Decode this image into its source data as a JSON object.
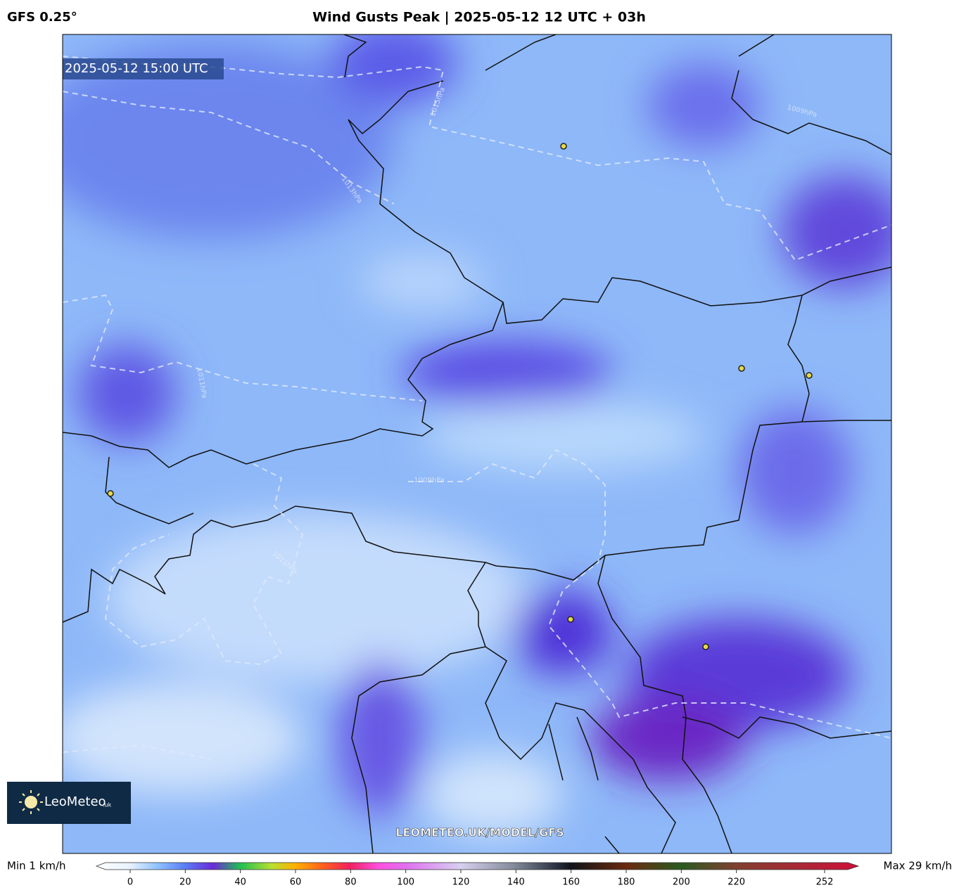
{
  "header": {
    "model": "GFS 0.25°",
    "title": "Wind Gusts Peak | 2025-05-12 12 UTC + 03h"
  },
  "map": {
    "valid_time": "2025-05-12 15:00 UTC",
    "isobar_labels": [
      "1015hPa",
      "1013hPa",
      "1011hPa",
      "1009hPa",
      "1009hPa",
      "1011hPa"
    ],
    "watermark": "LEOMETEO.UK/MODEL/GFS",
    "logo": {
      "name": "LeoMeteo",
      "suffix": ".uk"
    }
  },
  "colorbar": {
    "min_label": "Min 1 km/h",
    "max_label": "Max 29 km/h",
    "ticks": [
      0,
      20,
      40,
      60,
      80,
      100,
      120,
      140,
      160,
      180,
      200,
      220,
      252
    ]
  }
}
